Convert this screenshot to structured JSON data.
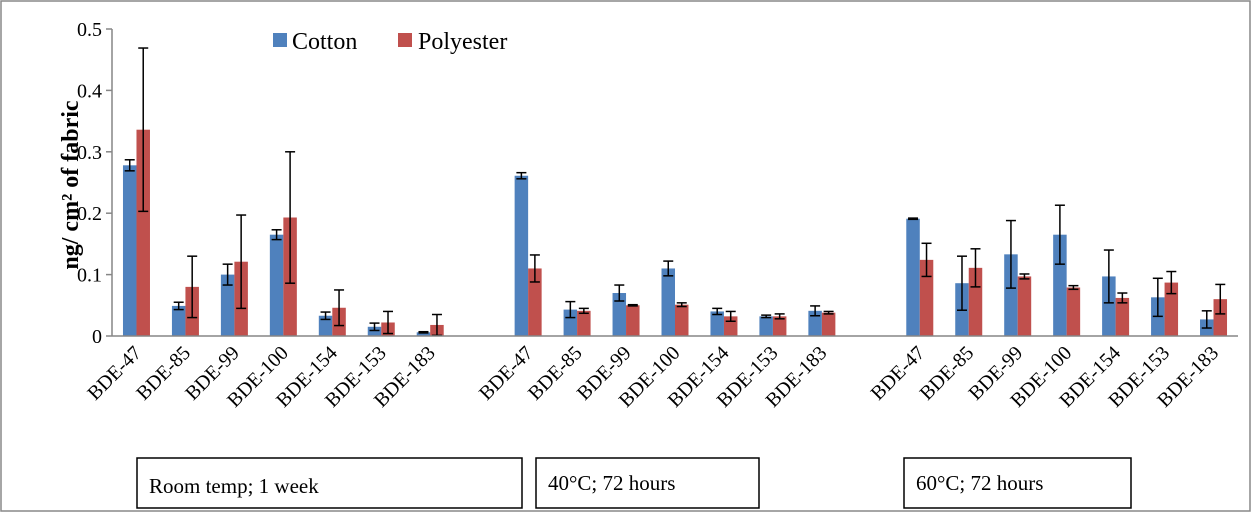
{
  "chart_data": {
    "type": "bar",
    "ylabel": "ng/ cm² of fabric",
    "ylim": [
      0,
      0.5
    ],
    "yticks": [
      "0",
      "0.1",
      "0.2",
      "0.3",
      "0.4",
      "0.5"
    ],
    "ytick_values": [
      0,
      0.1,
      0.2,
      0.3,
      0.4,
      0.5
    ],
    "grid": false,
    "legend_position": "top-left",
    "colors": {
      "Cotton": "#4f81bd",
      "Polyester": "#c0504d"
    },
    "groups": [
      {
        "label": "Room temp; 1 week",
        "categories": [
          "BDE-47",
          "BDE-85",
          "BDE-99",
          "BDE-100",
          "BDE-154",
          "BDE-153",
          "BDE-183"
        ],
        "series": [
          {
            "name": "Cotton",
            "values": [
              0.278,
              0.049,
              0.1,
              0.165,
              0.033,
              0.015,
              0.006
            ],
            "errors": [
              0.009,
              0.006,
              0.017,
              0.008,
              0.006,
              0.006,
              0.001
            ]
          },
          {
            "name": "Polyester",
            "values": [
              0.336,
              0.08,
              0.121,
              0.193,
              0.046,
              0.022,
              0.018
            ],
            "errors": [
              0.133,
              0.05,
              0.076,
              0.107,
              0.029,
              0.018,
              0.017
            ]
          }
        ]
      },
      {
        "label": "40°C; 72 hours",
        "categories": [
          "BDE-47",
          "BDE-85",
          "BDE-99",
          "BDE-100",
          "BDE-154",
          "BDE-153",
          "BDE-183"
        ],
        "series": [
          {
            "name": "Cotton",
            "values": [
              0.261,
              0.043,
              0.07,
              0.11,
              0.04,
              0.032,
              0.041
            ],
            "errors": [
              0.005,
              0.013,
              0.013,
              0.012,
              0.005,
              0.002,
              0.008
            ]
          },
          {
            "name": "Polyester",
            "values": [
              0.11,
              0.041,
              0.05,
              0.051,
              0.032,
              0.032,
              0.038
            ],
            "errors": [
              0.022,
              0.004,
              0.001,
              0.003,
              0.008,
              0.004,
              0.002
            ]
          }
        ]
      },
      {
        "label": "60°C; 72 hours",
        "categories": [
          "BDE-47",
          "BDE-85",
          "BDE-99",
          "BDE-100",
          "BDE-154",
          "BDE-153",
          "BDE-183"
        ],
        "series": [
          {
            "name": "Cotton",
            "values": [
              0.191,
              0.086,
              0.133,
              0.165,
              0.097,
              0.063,
              0.027
            ],
            "errors": [
              0.001,
              0.044,
              0.055,
              0.048,
              0.043,
              0.031,
              0.014
            ]
          },
          {
            "name": "Polyester",
            "values": [
              0.124,
              0.111,
              0.097,
              0.079,
              0.062,
              0.087,
              0.06
            ],
            "errors": [
              0.027,
              0.031,
              0.004,
              0.003,
              0.008,
              0.018,
              0.024
            ]
          }
        ]
      }
    ]
  }
}
